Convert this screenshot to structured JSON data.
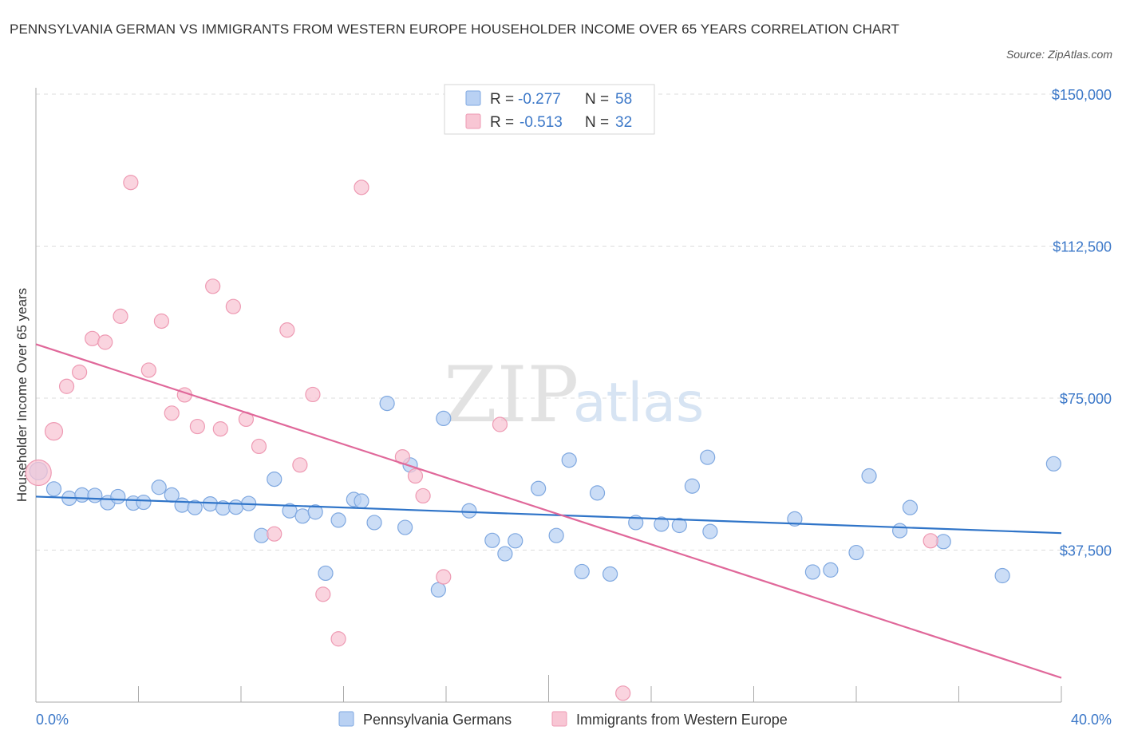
{
  "title": "PENNSYLVANIA GERMAN VS IMMIGRANTS FROM WESTERN EUROPE HOUSEHOLDER INCOME OVER 65 YEARS CORRELATION CHART",
  "source": "Source: ZipAtlas.com",
  "watermark": {
    "zip": "ZIP",
    "atlas": "atlas"
  },
  "colors": {
    "blue_fill": "#b9d1f3",
    "blue_stroke": "#7fa8e0",
    "blue_line": "#2f74c8",
    "pink_fill": "#f8c6d4",
    "pink_stroke": "#ee9ab3",
    "pink_line": "#e0689a",
    "tick_text": "#3c78c8",
    "grid": "#dddddd"
  },
  "legend": {
    "rows": [
      {
        "r_label": "R =",
        "r_value": "-0.277",
        "n_label": "N =",
        "n_value": "58"
      },
      {
        "r_label": "R =",
        "r_value": "-0.513",
        "n_label": "N =",
        "n_value": "32"
      }
    ]
  },
  "bottom_legend": {
    "blue": "Pennsylvania Germans",
    "pink": "Immigrants from Western Europe"
  },
  "chart_data": {
    "type": "scatter",
    "ylabel": "Householder Income Over 65 years",
    "xlim": [
      0,
      40
    ],
    "ylim": [
      0,
      150000
    ],
    "x_tick_labels": {
      "left": "0.0%",
      "right": "40.0%"
    },
    "y_ticks": [
      {
        "value": 150000,
        "label": "$150,000"
      },
      {
        "value": 112500,
        "label": "$112,500"
      },
      {
        "value": 75000,
        "label": "$75,000"
      },
      {
        "value": 37500,
        "label": "$37,500"
      }
    ],
    "series": [
      {
        "name": "Pennsylvania Germans",
        "r": -0.277,
        "n": 58,
        "trend": [
          [
            0,
            50700
          ],
          [
            40,
            41700
          ]
        ],
        "points": [
          [
            0.1,
            57000,
            1
          ],
          [
            0.7,
            52600,
            0
          ],
          [
            1.3,
            50300,
            0
          ],
          [
            1.8,
            51100,
            0
          ],
          [
            2.3,
            51000,
            0
          ],
          [
            2.8,
            49200,
            0
          ],
          [
            3.2,
            50700,
            0
          ],
          [
            3.8,
            49100,
            0
          ],
          [
            4.2,
            49300,
            0
          ],
          [
            4.8,
            53000,
            0
          ],
          [
            5.3,
            51100,
            0
          ],
          [
            5.7,
            48600,
            0
          ],
          [
            6.2,
            48000,
            0
          ],
          [
            6.8,
            48900,
            0
          ],
          [
            7.3,
            47900,
            0
          ],
          [
            7.8,
            48100,
            0
          ],
          [
            8.3,
            49000,
            0
          ],
          [
            8.8,
            41100,
            0
          ],
          [
            9.3,
            55000,
            0
          ],
          [
            9.9,
            47200,
            0
          ],
          [
            10.4,
            45900,
            0
          ],
          [
            10.9,
            46900,
            0
          ],
          [
            11.3,
            31800,
            0
          ],
          [
            11.8,
            44900,
            0
          ],
          [
            12.4,
            50000,
            0
          ],
          [
            12.7,
            49600,
            0
          ],
          [
            13.2,
            44300,
            0
          ],
          [
            13.7,
            73700,
            0
          ],
          [
            14.4,
            43100,
            0
          ],
          [
            14.6,
            58500,
            0
          ],
          [
            15.7,
            27700,
            0
          ],
          [
            15.9,
            70000,
            0
          ],
          [
            16.9,
            47200,
            0
          ],
          [
            17.8,
            39900,
            0
          ],
          [
            18.3,
            36600,
            0
          ],
          [
            18.7,
            39800,
            0
          ],
          [
            19.6,
            52700,
            0
          ],
          [
            20.3,
            41100,
            0
          ],
          [
            20.8,
            59700,
            0
          ],
          [
            21.3,
            32200,
            0
          ],
          [
            21.9,
            51600,
            0
          ],
          [
            22.4,
            31600,
            0
          ],
          [
            23.4,
            44300,
            0
          ],
          [
            24.4,
            43900,
            0
          ],
          [
            25.1,
            43600,
            0
          ],
          [
            25.6,
            53300,
            0
          ],
          [
            26.2,
            60400,
            0
          ],
          [
            26.3,
            42100,
            0
          ],
          [
            29.6,
            45200,
            0
          ],
          [
            30.3,
            32100,
            0
          ],
          [
            31.0,
            32600,
            0
          ],
          [
            32.0,
            36900,
            0
          ],
          [
            32.5,
            55800,
            0
          ],
          [
            33.7,
            42300,
            0
          ],
          [
            34.1,
            48000,
            0
          ],
          [
            35.4,
            39600,
            0
          ],
          [
            37.7,
            31200,
            0
          ],
          [
            39.7,
            58800,
            0
          ]
        ]
      },
      {
        "name": "Immigrants from Western Europe",
        "r": -0.513,
        "n": 32,
        "trend": [
          [
            0,
            88300
          ],
          [
            40,
            6000
          ]
        ],
        "points": [
          [
            0.1,
            56600,
            2
          ],
          [
            0.7,
            66800,
            1
          ],
          [
            1.2,
            77900,
            0
          ],
          [
            1.7,
            81400,
            0
          ],
          [
            2.2,
            89700,
            0
          ],
          [
            2.7,
            88800,
            0
          ],
          [
            3.3,
            95200,
            0
          ],
          [
            3.7,
            128200,
            0
          ],
          [
            4.4,
            81900,
            0
          ],
          [
            4.9,
            94000,
            0
          ],
          [
            5.3,
            71300,
            0
          ],
          [
            5.8,
            75800,
            0
          ],
          [
            6.3,
            68000,
            0
          ],
          [
            6.9,
            102600,
            0
          ],
          [
            7.2,
            67400,
            0
          ],
          [
            7.7,
            97600,
            0
          ],
          [
            8.2,
            69800,
            0
          ],
          [
            8.7,
            63100,
            0
          ],
          [
            9.3,
            41500,
            0
          ],
          [
            9.8,
            91800,
            0
          ],
          [
            10.3,
            58500,
            0
          ],
          [
            10.8,
            75900,
            0
          ],
          [
            11.2,
            26600,
            0
          ],
          [
            11.8,
            15600,
            0
          ],
          [
            12.7,
            127000,
            0
          ],
          [
            14.3,
            60500,
            0
          ],
          [
            14.8,
            55800,
            0
          ],
          [
            15.1,
            50900,
            0
          ],
          [
            15.9,
            30900,
            0
          ],
          [
            18.1,
            68500,
            0
          ],
          [
            22.9,
            2200,
            0
          ],
          [
            34.9,
            39800,
            0
          ]
        ]
      }
    ]
  }
}
